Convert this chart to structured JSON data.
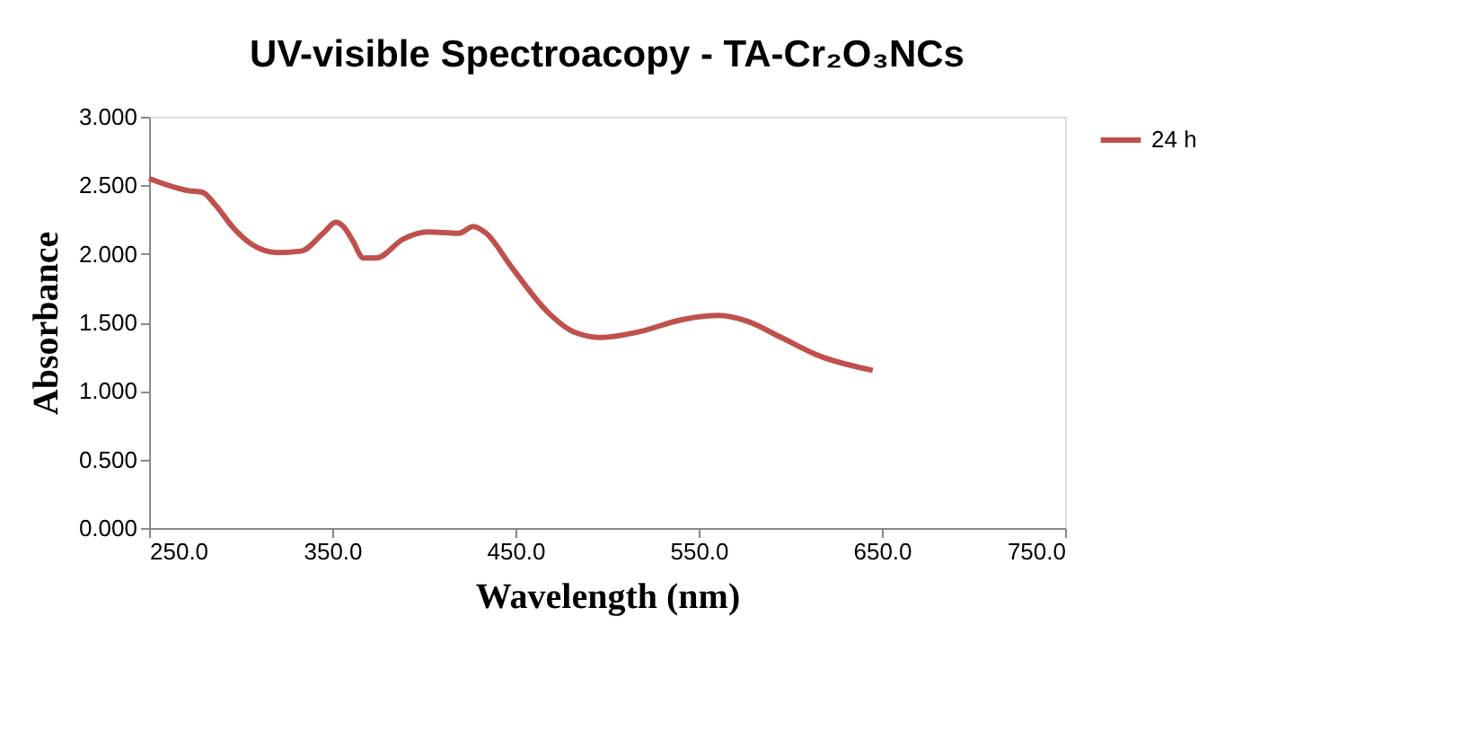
{
  "chart_data": {
    "type": "line",
    "title": "UV-visible Spectroacopy - TA-Cr₂O₃NCs",
    "xlabel": "Wavelength  (nm)",
    "ylabel": "Absorbance",
    "x": [
      250,
      272,
      279,
      286,
      296,
      306,
      320,
      333,
      345,
      352,
      356,
      361,
      367,
      374,
      389,
      402,
      419,
      427,
      434,
      448,
      468,
      482,
      497,
      517,
      541,
      561,
      576,
      595,
      615,
      645
    ],
    "series": [
      {
        "name": "24 h",
        "color": "#c0504d",
        "values": [
          2.55,
          2.46,
          2.45,
          2.36,
          2.19,
          2.07,
          2.01,
          2.02,
          2.15,
          2.23,
          2.2,
          2.1,
          1.97,
          1.97,
          2.11,
          2.16,
          2.15,
          2.2,
          2.15,
          1.9,
          1.57,
          1.43,
          1.39,
          1.43,
          1.52,
          1.55,
          1.51,
          1.39,
          1.26,
          1.15
        ]
      }
    ],
    "xlim": [
      250,
      750
    ],
    "xticks": [
      {
        "value": 250,
        "label": "250.0"
      },
      {
        "value": 350,
        "label": "350.0"
      },
      {
        "value": 450,
        "label": "450.0"
      },
      {
        "value": 550,
        "label": "550.0"
      },
      {
        "value": 650,
        "label": "650.0"
      },
      {
        "value": 750,
        "label": "750.0"
      }
    ],
    "ylim": [
      0,
      3
    ],
    "yticks": [
      {
        "value": 0,
        "label": "0.000"
      },
      {
        "value": 0.5,
        "label": "0.500"
      },
      {
        "value": 1,
        "label": "1.000"
      },
      {
        "value": 1.5,
        "label": "1.500"
      },
      {
        "value": 2,
        "label": "2.000"
      },
      {
        "value": 2.5,
        "label": "2.500"
      },
      {
        "value": 3,
        "label": "3.000"
      }
    ],
    "grid": false,
    "legend": "right",
    "line_style": "solid",
    "marker": "none"
  }
}
